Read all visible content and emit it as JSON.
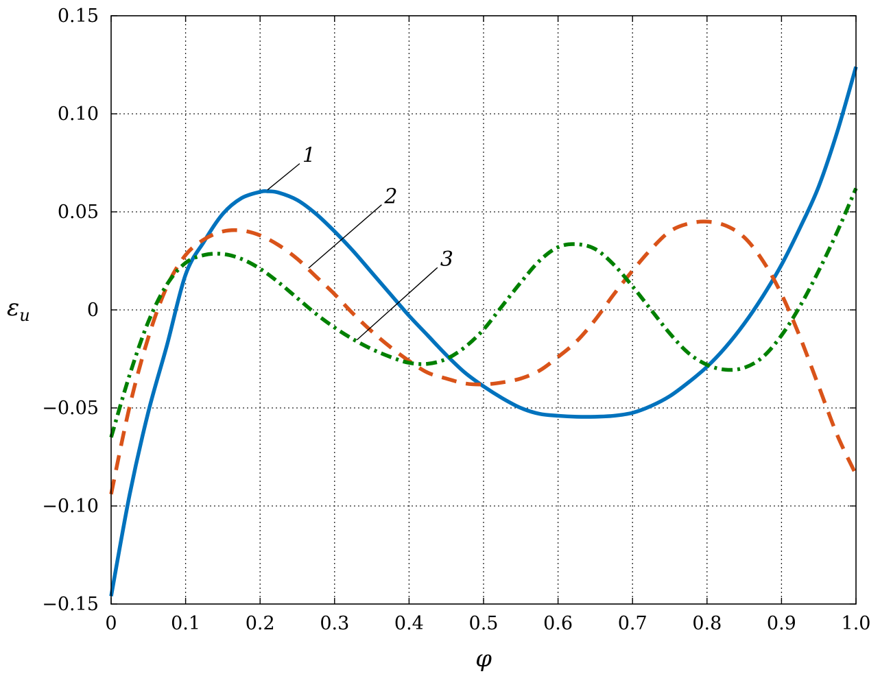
{
  "chart_data": {
    "type": "line",
    "xlabel": "φ",
    "ylabel": "ε",
    "ylabel_subscript": "u",
    "xlim": [
      0,
      1.0
    ],
    "ylim": [
      -0.15,
      0.15
    ],
    "grid": true,
    "x_ticks": [
      0,
      0.1,
      0.2,
      0.3,
      0.4,
      0.5,
      0.6,
      0.7,
      0.8,
      0.9,
      1.0
    ],
    "x_tick_labels": [
      "0",
      "0.1",
      "0.2",
      "0.3",
      "0.4",
      "0.5",
      "0.6",
      "0.7",
      "0.8",
      "0.9",
      "1.0"
    ],
    "y_ticks": [
      -0.15,
      -0.1,
      -0.05,
      0,
      0.05,
      0.1,
      0.15
    ],
    "y_tick_labels": [
      "−0.15",
      "−0.10",
      "−0.05",
      "0",
      "0.05",
      "0.10",
      "0.15"
    ],
    "series": [
      {
        "label": "1",
        "color": "#0072BD",
        "style": "solid",
        "x": [
          0,
          0.025,
          0.05,
          0.075,
          0.1,
          0.125,
          0.15,
          0.175,
          0.2,
          0.21,
          0.225,
          0.25,
          0.275,
          0.3,
          0.325,
          0.35,
          0.375,
          0.4,
          0.425,
          0.45,
          0.475,
          0.5,
          0.525,
          0.55,
          0.575,
          0.6,
          0.625,
          0.65,
          0.675,
          0.7,
          0.725,
          0.75,
          0.775,
          0.8,
          0.825,
          0.85,
          0.875,
          0.9,
          0.925,
          0.95,
          0.975,
          1.0
        ],
        "y": [
          -0.146,
          -0.094,
          -0.052,
          -0.018,
          0.018,
          0.035,
          0.049,
          0.057,
          0.0602,
          0.0605,
          0.0598,
          0.056,
          0.049,
          0.04,
          0.03,
          0.019,
          0.008,
          -0.003,
          -0.013,
          -0.023,
          -0.032,
          -0.039,
          -0.045,
          -0.05,
          -0.053,
          -0.054,
          -0.0545,
          -0.0545,
          -0.054,
          -0.0525,
          -0.049,
          -0.044,
          -0.037,
          -0.029,
          -0.019,
          -0.007,
          0.007,
          0.023,
          0.042,
          0.063,
          0.091,
          0.124
        ]
      },
      {
        "label": "2",
        "color": "#D95319",
        "style": "dashed",
        "x": [
          0,
          0.025,
          0.05,
          0.075,
          0.1,
          0.125,
          0.15,
          0.175,
          0.2,
          0.225,
          0.25,
          0.275,
          0.3,
          0.325,
          0.35,
          0.375,
          0.4,
          0.425,
          0.45,
          0.475,
          0.5,
          0.525,
          0.55,
          0.575,
          0.6,
          0.625,
          0.65,
          0.675,
          0.7,
          0.725,
          0.75,
          0.775,
          0.8,
          0.825,
          0.85,
          0.875,
          0.9,
          0.925,
          0.95,
          0.975,
          1.0
        ],
        "y": [
          -0.094,
          -0.049,
          -0.014,
          0.012,
          0.028,
          0.036,
          0.04,
          0.0405,
          0.038,
          0.033,
          0.026,
          0.017,
          0.008,
          -0.002,
          -0.011,
          -0.019,
          -0.026,
          -0.032,
          -0.035,
          -0.0375,
          -0.038,
          -0.037,
          -0.035,
          -0.031,
          -0.024,
          -0.016,
          -0.005,
          0.008,
          0.02,
          0.031,
          0.04,
          0.044,
          0.045,
          0.043,
          0.037,
          0.025,
          0.008,
          -0.014,
          -0.039,
          -0.064,
          -0.084
        ]
      },
      {
        "label": "3",
        "color": "#008000",
        "style": "dashdot",
        "x": [
          0,
          0.025,
          0.05,
          0.075,
          0.1,
          0.125,
          0.15,
          0.175,
          0.2,
          0.225,
          0.25,
          0.275,
          0.3,
          0.325,
          0.35,
          0.375,
          0.4,
          0.425,
          0.45,
          0.475,
          0.5,
          0.525,
          0.55,
          0.575,
          0.6,
          0.625,
          0.65,
          0.675,
          0.7,
          0.725,
          0.75,
          0.775,
          0.8,
          0.825,
          0.85,
          0.875,
          0.9,
          0.925,
          0.95,
          0.975,
          1.0
        ],
        "y": [
          -0.065,
          -0.033,
          -0.006,
          0.013,
          0.024,
          0.028,
          0.0285,
          0.026,
          0.021,
          0.014,
          0.006,
          -0.002,
          -0.009,
          -0.015,
          -0.02,
          -0.024,
          -0.027,
          -0.0275,
          -0.025,
          -0.019,
          -0.01,
          0.002,
          0.014,
          0.025,
          0.032,
          0.0335,
          0.031,
          0.023,
          0.012,
          0.0,
          -0.012,
          -0.022,
          -0.028,
          -0.0305,
          -0.0295,
          -0.024,
          -0.013,
          0.002,
          0.02,
          0.04,
          0.062
        ]
      }
    ],
    "annotations": [
      {
        "text": "1",
        "series": 0,
        "at_x": 0.21,
        "label_x": 0.255,
        "label_y": 0.076
      },
      {
        "text": "2",
        "series": 1,
        "at_x": 0.265,
        "label_x": 0.365,
        "label_y": 0.055
      },
      {
        "text": "3",
        "series": 2,
        "at_x": 0.33,
        "label_x": 0.44,
        "label_y": 0.023
      }
    ]
  }
}
